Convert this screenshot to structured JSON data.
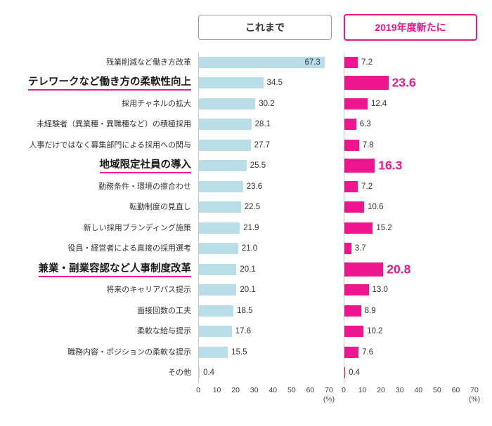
{
  "colors": {
    "prev_bar": "#b9dde9",
    "new_bar": "#ee168e"
  },
  "chart_data": {
    "type": "bar",
    "orientation": "horizontal",
    "series": [
      {
        "name": "これまで"
      },
      {
        "name": "2019年度新たに"
      }
    ],
    "rows": [
      {
        "label": "残業削減など働き方改革",
        "prev": 67.3,
        "new": 7.2,
        "highlight": false
      },
      {
        "label": "テレワークなど働き方の柔軟性向上",
        "prev": 34.5,
        "new": 23.6,
        "highlight": true
      },
      {
        "label": "採用チャネルの拡大",
        "prev": 30.2,
        "new": 12.4,
        "highlight": false
      },
      {
        "label": "未経験者（異業種・異職種など）の積極採用",
        "prev": 28.1,
        "new": 6.3,
        "highlight": false
      },
      {
        "label": "人事だけではなく募集部門による採用への関与",
        "prev": 27.7,
        "new": 7.8,
        "highlight": false
      },
      {
        "label": "地域限定社員の導入",
        "prev": 25.5,
        "new": 16.3,
        "highlight": true
      },
      {
        "label": "勤務条件・環境の擦合わせ",
        "prev": 23.6,
        "new": 7.2,
        "highlight": false
      },
      {
        "label": "転勤制度の見直し",
        "prev": 22.5,
        "new": 10.6,
        "highlight": false
      },
      {
        "label": "新しい採用ブランディング施策",
        "prev": 21.9,
        "new": 15.2,
        "highlight": false
      },
      {
        "label": "役員・経営者による直接の採用選考",
        "prev": 21.0,
        "new": 3.7,
        "highlight": false
      },
      {
        "label": "兼業・副業容認など人事制度改革",
        "prev": 20.1,
        "new": 20.8,
        "highlight": true
      },
      {
        "label": "将来のキャリアパス提示",
        "prev": 20.1,
        "new": 13.0,
        "highlight": false
      },
      {
        "label": "面接回数の工夫",
        "prev": 18.5,
        "new": 8.9,
        "highlight": false
      },
      {
        "label": "柔軟な給与提示",
        "prev": 17.6,
        "new": 10.2,
        "highlight": false
      },
      {
        "label": "職務内容・ポジションの柔軟な提示",
        "prev": 15.5,
        "new": 7.6,
        "highlight": false
      },
      {
        "label": "その他",
        "prev": 0.4,
        "new": 0.4,
        "highlight": false
      }
    ],
    "xlim": [
      0,
      70
    ],
    "ticks": [
      0,
      10,
      20,
      30,
      40,
      50,
      60,
      70
    ],
    "unit": "(%)",
    "legend_position": "top",
    "grid": false
  }
}
